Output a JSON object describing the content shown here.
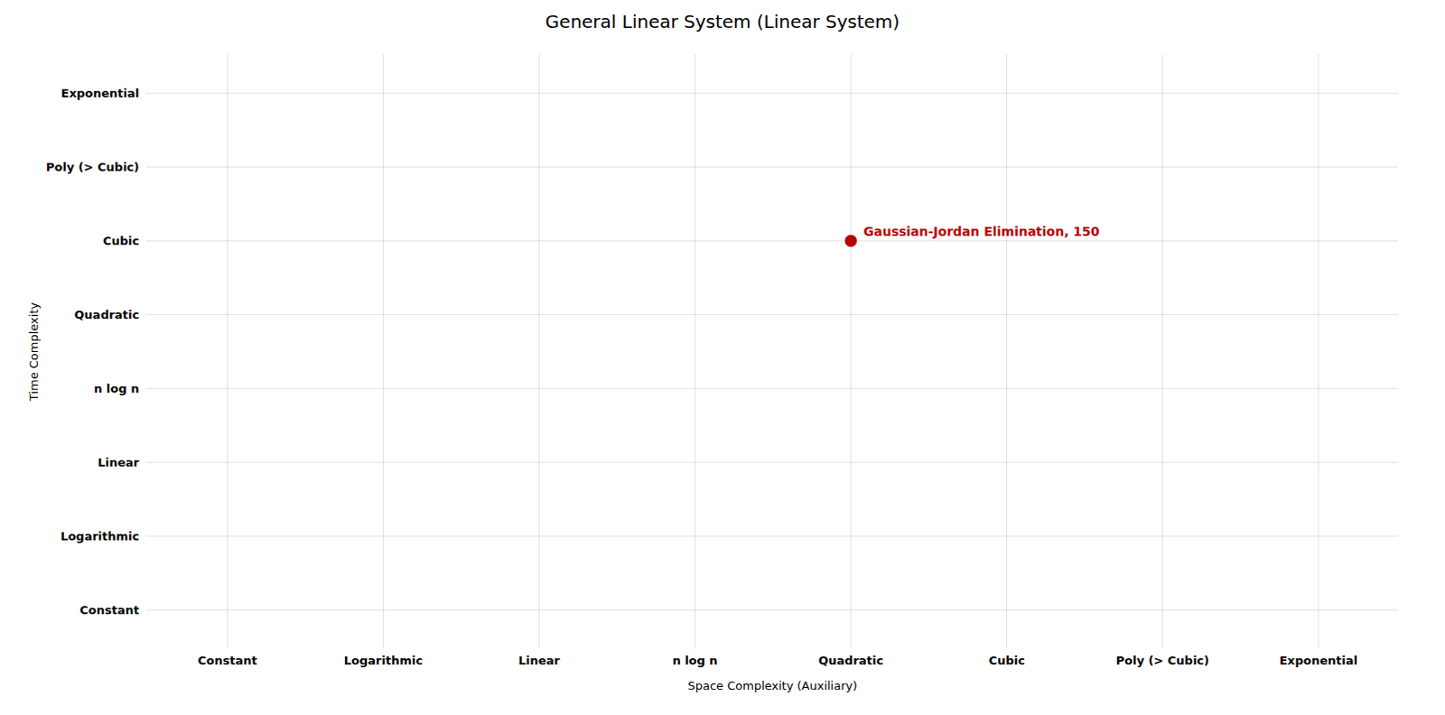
{
  "chart_data": {
    "type": "scatter",
    "title": "General Linear System (Linear System)",
    "xlabel": "Space Complexity (Auxiliary)",
    "ylabel": "Time Complexity",
    "categories": [
      "Constant",
      "Logarithmic",
      "Linear",
      "n log n",
      "Quadratic",
      "Cubic",
      "Poly (> Cubic)",
      "Exponential"
    ],
    "points": [
      {
        "label": "Gaussian-Jordan Elimination, 150",
        "x": "Quadratic",
        "y": "Cubic",
        "color": "#b80000"
      }
    ],
    "grid": true
  }
}
